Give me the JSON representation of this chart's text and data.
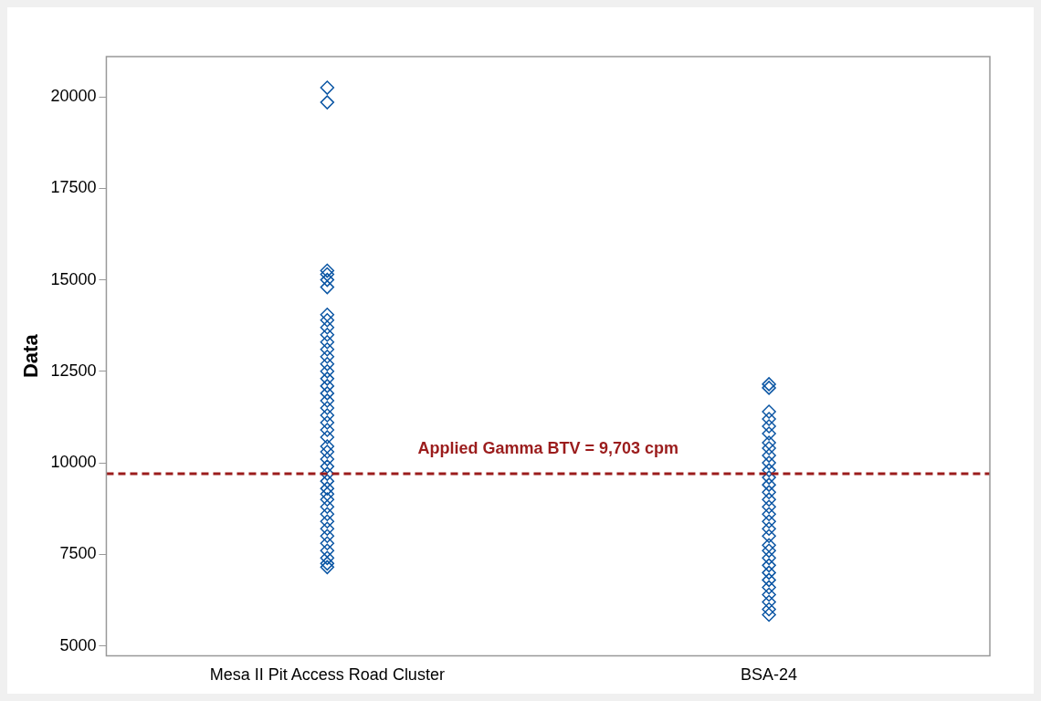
{
  "chart_data": {
    "type": "scatter",
    "ylabel": "Data",
    "categories": [
      "Mesa II Pit Access Road Cluster",
      "BSA-24"
    ],
    "series": [
      {
        "color": "#0b56a4",
        "x": [
          "Mesa II Pit Access Road Cluster",
          "Mesa II Pit Access Road Cluster",
          "Mesa II Pit Access Road Cluster",
          "Mesa II Pit Access Road Cluster",
          "Mesa II Pit Access Road Cluster",
          "Mesa II Pit Access Road Cluster",
          "Mesa II Pit Access Road Cluster",
          "Mesa II Pit Access Road Cluster",
          "Mesa II Pit Access Road Cluster",
          "Mesa II Pit Access Road Cluster",
          "Mesa II Pit Access Road Cluster",
          "Mesa II Pit Access Road Cluster",
          "Mesa II Pit Access Road Cluster",
          "Mesa II Pit Access Road Cluster",
          "Mesa II Pit Access Road Cluster",
          "Mesa II Pit Access Road Cluster",
          "Mesa II Pit Access Road Cluster",
          "Mesa II Pit Access Road Cluster",
          "Mesa II Pit Access Road Cluster",
          "Mesa II Pit Access Road Cluster",
          "Mesa II Pit Access Road Cluster",
          "Mesa II Pit Access Road Cluster",
          "Mesa II Pit Access Road Cluster",
          "Mesa II Pit Access Road Cluster",
          "Mesa II Pit Access Road Cluster",
          "Mesa II Pit Access Road Cluster",
          "Mesa II Pit Access Road Cluster",
          "Mesa II Pit Access Road Cluster",
          "Mesa II Pit Access Road Cluster",
          "Mesa II Pit Access Road Cluster",
          "Mesa II Pit Access Road Cluster",
          "Mesa II Pit Access Road Cluster",
          "Mesa II Pit Access Road Cluster",
          "Mesa II Pit Access Road Cluster",
          "Mesa II Pit Access Road Cluster",
          "Mesa II Pit Access Road Cluster",
          "Mesa II Pit Access Road Cluster",
          "Mesa II Pit Access Road Cluster",
          "Mesa II Pit Access Road Cluster",
          "Mesa II Pit Access Road Cluster",
          "Mesa II Pit Access Road Cluster",
          "Mesa II Pit Access Road Cluster",
          "Mesa II Pit Access Road Cluster"
        ],
        "values": [
          20250,
          19850,
          15250,
          15150,
          15000,
          14800,
          14050,
          13900,
          13700,
          13500,
          13300,
          13100,
          12900,
          12700,
          12500,
          12300,
          12100,
          11900,
          11700,
          11500,
          11300,
          11100,
          10900,
          10700,
          10450,
          10300,
          10100,
          9900,
          9700,
          9500,
          9300,
          9150,
          9000,
          8800,
          8600,
          8400,
          8200,
          8000,
          7800,
          7600,
          7400,
          7250,
          7150
        ]
      },
      {
        "color": "#0b56a4",
        "x": [
          "BSA-24",
          "BSA-24",
          "BSA-24",
          "BSA-24",
          "BSA-24",
          "BSA-24",
          "BSA-24",
          "BSA-24",
          "BSA-24",
          "BSA-24",
          "BSA-24",
          "BSA-24",
          "BSA-24",
          "BSA-24",
          "BSA-24",
          "BSA-24",
          "BSA-24",
          "BSA-24",
          "BSA-24",
          "BSA-24",
          "BSA-24",
          "BSA-24",
          "BSA-24",
          "BSA-24",
          "BSA-24",
          "BSA-24",
          "BSA-24",
          "BSA-24",
          "BSA-24",
          "BSA-24",
          "BSA-24"
        ],
        "values": [
          12150,
          12050,
          11400,
          11200,
          11000,
          10800,
          10550,
          10400,
          10200,
          10000,
          9800,
          9600,
          9400,
          9200,
          9000,
          8800,
          8600,
          8400,
          8200,
          8000,
          7750,
          7600,
          7400,
          7200,
          7000,
          6800,
          6600,
          6400,
          6200,
          6000,
          5850
        ]
      }
    ],
    "ylim": [
      4730,
      21100
    ],
    "yticks": [
      5000,
      7500,
      10000,
      12500,
      15000,
      17500,
      20000
    ],
    "ref_lines": [
      {
        "axis": "y",
        "value": 9703,
        "label": "Applied Gamma BTV = 9,703 cpm",
        "color": "#9b1c1c",
        "line_style": "dashed"
      }
    ],
    "marker": "diamond",
    "grid": false,
    "legend": false
  }
}
